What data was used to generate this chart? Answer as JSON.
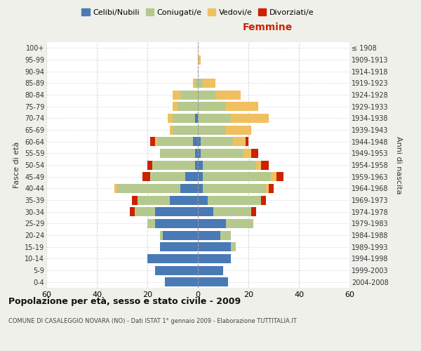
{
  "age_groups": [
    "0-4",
    "5-9",
    "10-14",
    "15-19",
    "20-24",
    "25-29",
    "30-34",
    "35-39",
    "40-44",
    "45-49",
    "50-54",
    "55-59",
    "60-64",
    "65-69",
    "70-74",
    "75-79",
    "80-84",
    "85-89",
    "90-94",
    "95-99",
    "100+"
  ],
  "birth_years": [
    "2004-2008",
    "1999-2003",
    "1994-1998",
    "1989-1993",
    "1984-1988",
    "1979-1983",
    "1974-1978",
    "1969-1973",
    "1964-1968",
    "1959-1963",
    "1954-1958",
    "1949-1953",
    "1944-1948",
    "1939-1943",
    "1934-1938",
    "1929-1933",
    "1924-1928",
    "1919-1923",
    "1914-1918",
    "1909-1913",
    "≤ 1908"
  ],
  "males": {
    "celibi": [
      13,
      17,
      20,
      15,
      14,
      17,
      17,
      11,
      7,
      5,
      1,
      1,
      2,
      0,
      1,
      0,
      0,
      0,
      0,
      0,
      0
    ],
    "coniugati": [
      0,
      0,
      0,
      0,
      1,
      3,
      8,
      13,
      25,
      14,
      17,
      14,
      14,
      10,
      9,
      8,
      7,
      1,
      0,
      0,
      0
    ],
    "vedovi": [
      0,
      0,
      0,
      0,
      0,
      0,
      0,
      0,
      1,
      0,
      0,
      0,
      1,
      1,
      2,
      2,
      3,
      1,
      0,
      0,
      0
    ],
    "divorziati": [
      0,
      0,
      0,
      0,
      0,
      0,
      2,
      2,
      0,
      3,
      2,
      0,
      2,
      0,
      0,
      0,
      0,
      0,
      0,
      0,
      0
    ]
  },
  "females": {
    "nubili": [
      12,
      10,
      13,
      13,
      9,
      11,
      6,
      4,
      2,
      2,
      2,
      1,
      1,
      0,
      0,
      0,
      0,
      0,
      0,
      0,
      0
    ],
    "coniugate": [
      0,
      0,
      0,
      2,
      4,
      11,
      15,
      21,
      25,
      27,
      21,
      17,
      13,
      11,
      13,
      11,
      7,
      2,
      0,
      0,
      0
    ],
    "vedove": [
      0,
      0,
      0,
      0,
      0,
      0,
      0,
      0,
      1,
      2,
      2,
      3,
      5,
      10,
      15,
      13,
      10,
      5,
      0,
      1,
      0
    ],
    "divorziate": [
      0,
      0,
      0,
      0,
      0,
      0,
      2,
      2,
      2,
      3,
      3,
      3,
      1,
      0,
      0,
      0,
      0,
      0,
      0,
      0,
      0
    ]
  },
  "colors": {
    "celibi": "#4a7ab5",
    "coniugati": "#b5c98e",
    "vedovi": "#f0c060",
    "divorziati": "#cc2200"
  },
  "title": "Popolazione per età, sesso e stato civile - 2009",
  "subtitle": "COMUNE DI CASALEGGIO NOVARA (NO) - Dati ISTAT 1° gennaio 2009 - Elaborazione TUTTITALIA.IT",
  "xlabel_right": "Femmine",
  "ylabel_left": "Fasce di età",
  "ylabel_right": "Anni di nascita",
  "legend_labels": [
    "Celibi/Nubili",
    "Coniugati/e",
    "Vedovi/e",
    "Divorziati/e"
  ],
  "xlim": 60,
  "bg_color": "#f0f0eb",
  "plot_bg_color": "#ffffff",
  "grid_color": "#cccccc"
}
